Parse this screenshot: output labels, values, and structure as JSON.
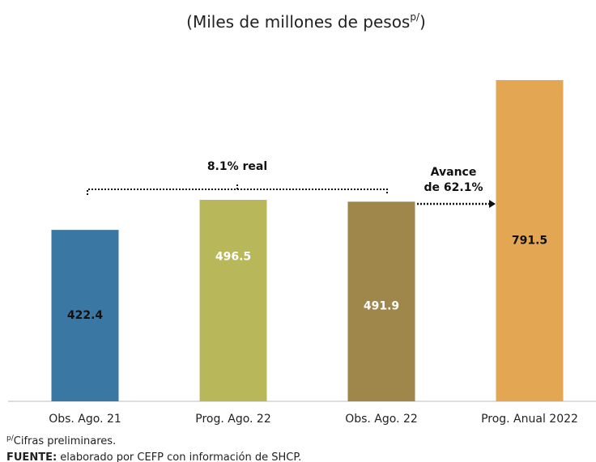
{
  "chart_data": {
    "type": "bar",
    "title": [
      "(Miles de millones de pesos",
      "p/",
      ")"
    ],
    "categories": [
      "Obs. Ago. 21",
      "Prog. Ago. 22",
      "Obs. Ago. 22",
      "Prog. Anual 2022"
    ],
    "values": [
      422.4,
      496.5,
      491.9,
      791.5
    ],
    "colors": [
      "#3b77a3",
      "#b8b85a",
      "#9f874c",
      "#e3a754"
    ],
    "label_colors": [
      "#111111",
      "#ffffff",
      "#ffffff",
      "#111111"
    ],
    "annotations": [
      "8.1% real",
      [
        "Avance",
        "de 62.1%"
      ]
    ],
    "notes": [
      [
        "p/",
        "Cifras preliminares."
      ],
      [
        "FUENTE:",
        " elaborado por CEFP con información de SHCP."
      ]
    ]
  }
}
